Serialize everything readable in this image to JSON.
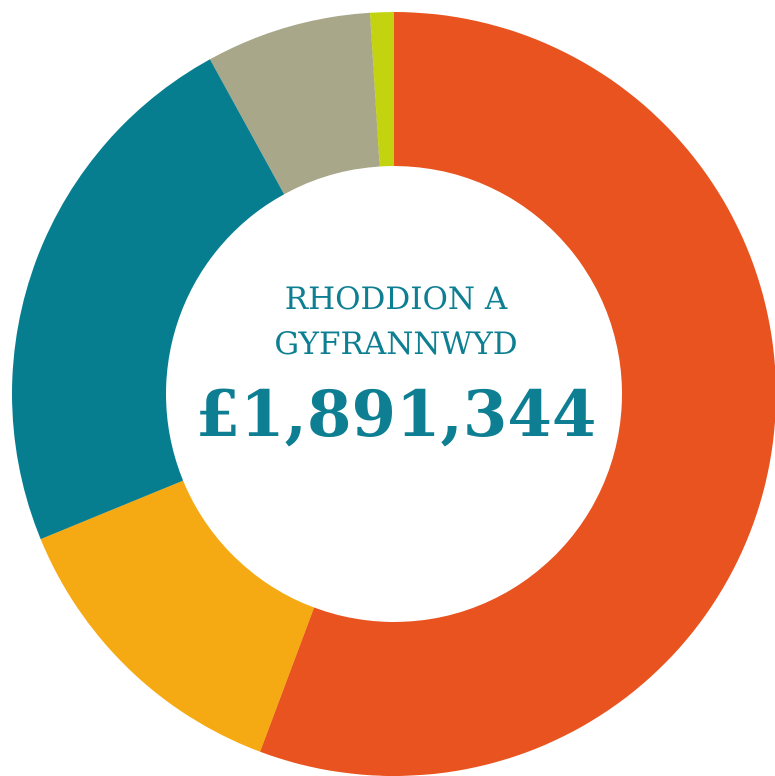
{
  "chart_data": {
    "type": "donut",
    "title": [
      "RHODDION A",
      "GYFRANNWYD"
    ],
    "center_label": "£1,891,344",
    "categories": [
      null,
      null,
      null,
      null,
      null
    ],
    "values": [
      55.7,
      13.1,
      23.2,
      7.0,
      1.0
    ],
    "colors": [
      "#e8531f",
      "#f5aa14",
      "#077e90",
      "#a8a78a",
      "#c3d30f"
    ],
    "start_angle": 0,
    "direction": "clockwise"
  }
}
